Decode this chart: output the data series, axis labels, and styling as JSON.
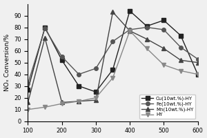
{
  "title": "",
  "xlabel": "",
  "ylabel": "NOₓ Conversion/%",
  "xlim": [
    100,
    600
  ],
  "ylim": [
    0,
    100
  ],
  "xticks": [
    100,
    200,
    300,
    400,
    500,
    600
  ],
  "yticks": [
    0,
    10,
    20,
    30,
    40,
    50,
    60,
    70,
    80,
    90
  ],
  "series": [
    {
      "label": "Cu(10wt.%)-HY",
      "x": [
        100,
        150,
        200,
        250,
        300,
        350,
        400,
        450,
        500,
        550,
        600
      ],
      "y": [
        27,
        80,
        52,
        30,
        25,
        44,
        94,
        81,
        86,
        73,
        40
      ],
      "marker": "s",
      "color": "#222222",
      "linewidth": 1.0,
      "markersize": 4
    },
    {
      "label": "Fe(10wt.%)-HY",
      "x": [
        100,
        150,
        200,
        250,
        300,
        350,
        400,
        450,
        500,
        550,
        600
      ],
      "y": [
        32,
        79,
        55,
        40,
        45,
        68,
        78,
        80,
        78,
        63,
        53
      ],
      "marker": "o",
      "color": "#555555",
      "linewidth": 1.0,
      "markersize": 4
    },
    {
      "label": "Mn(10wt.%)-HY",
      "x": [
        100,
        150,
        200,
        250,
        300,
        350,
        400,
        450,
        500,
        550,
        600
      ],
      "y": [
        16,
        71,
        16,
        17,
        18,
        93,
        77,
        70,
        62,
        52,
        50
      ],
      "marker": "^",
      "color": "#444444",
      "linewidth": 1.0,
      "markersize": 4
    },
    {
      "label": "HY",
      "x": [
        100,
        150,
        200,
        250,
        300,
        350,
        400,
        450,
        500,
        550,
        600
      ],
      "y": [
        10,
        12,
        15,
        17,
        20,
        37,
        77,
        62,
        48,
        43,
        40
      ],
      "marker": "v",
      "color": "#888888",
      "linewidth": 1.0,
      "markersize": 4
    }
  ],
  "legend_loc": "lower right",
  "background_color": "#f0f0f0"
}
